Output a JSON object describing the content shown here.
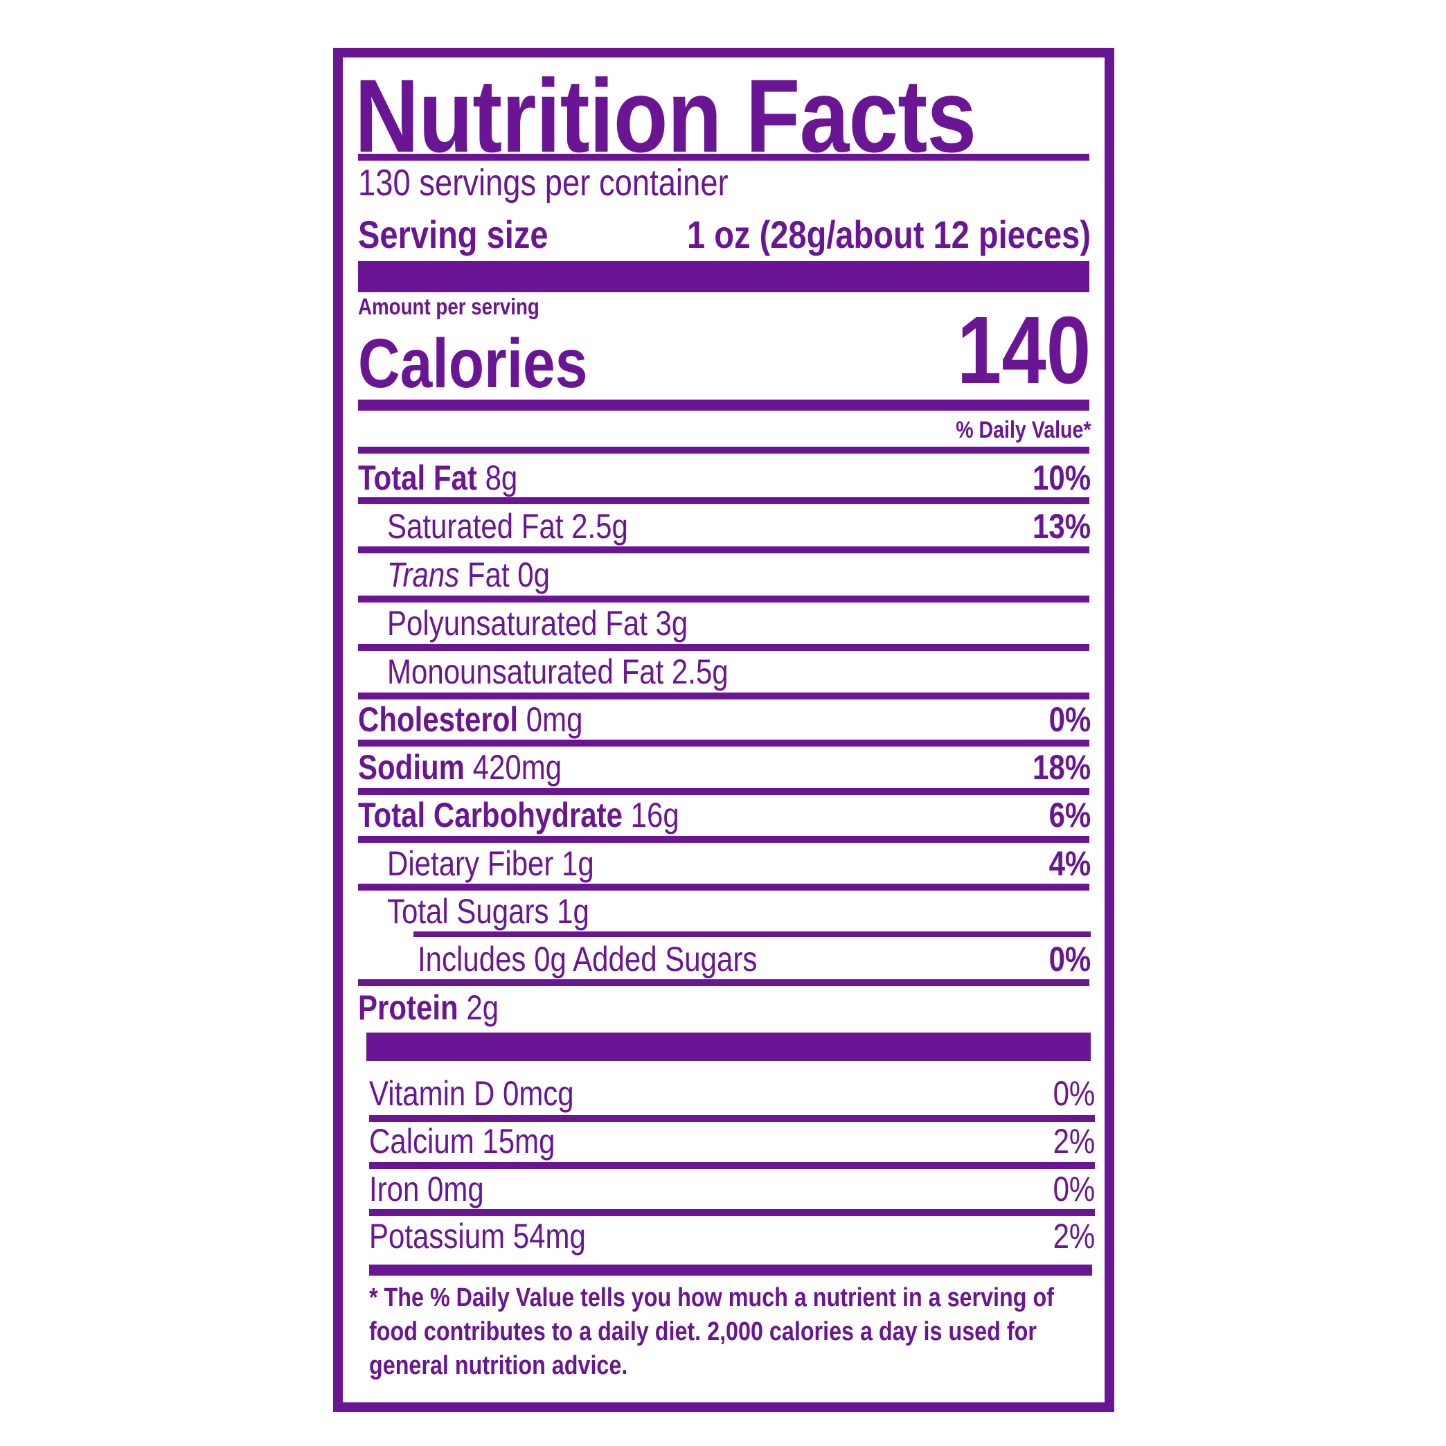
{
  "label": {
    "title": "Nutrition Facts",
    "servings_per_container": "130 servings per container",
    "serving_size_label": "Serving size",
    "serving_size_value": "1 oz (28g/about 12 pieces)",
    "amount_per_serving": "Amount per serving",
    "calories_label": "Calories",
    "calories_value": "140",
    "daily_value_header": "% Daily Value*",
    "nutrients": [
      {
        "name": "Total Fat",
        "amount": "8g",
        "dv": "10%"
      },
      {
        "name": "Saturated Fat 2.5g",
        "dv": "13%"
      },
      {
        "name_italic": "Trans",
        "name": "Fat 0g"
      },
      {
        "name": "Polyunsaturated Fat 3g"
      },
      {
        "name": "Monounsaturated Fat 2.5g"
      },
      {
        "name": "Cholesterol",
        "amount": "0mg",
        "dv": "0%"
      },
      {
        "name": "Sodium",
        "amount": "420mg",
        "dv": "18%"
      },
      {
        "name": "Total Carbohydrate",
        "amount": "16g",
        "dv": "6%"
      },
      {
        "name": "Dietary Fiber 1g",
        "dv": "4%"
      },
      {
        "name": "Total Sugars 1g"
      },
      {
        "name": "Includes 0g Added Sugars",
        "dv": "0%"
      },
      {
        "name": "Protein",
        "amount": "2g"
      }
    ],
    "vitamins": [
      {
        "name": "Vitamin D 0mcg",
        "dv": "0%"
      },
      {
        "name": "Calcium 15mg",
        "dv": "2%"
      },
      {
        "name": "Iron 0mg",
        "dv": "0%"
      },
      {
        "name": "Potassium 54mg",
        "dv": "2%"
      }
    ],
    "footnote": "* The % Daily Value tells you how much a nutrient in a serving of food contributes to a daily diet. 2,000 calories a day is used for general nutrition advice."
  },
  "colors": {
    "accent": "#6a1594",
    "background": "#ffffff"
  }
}
